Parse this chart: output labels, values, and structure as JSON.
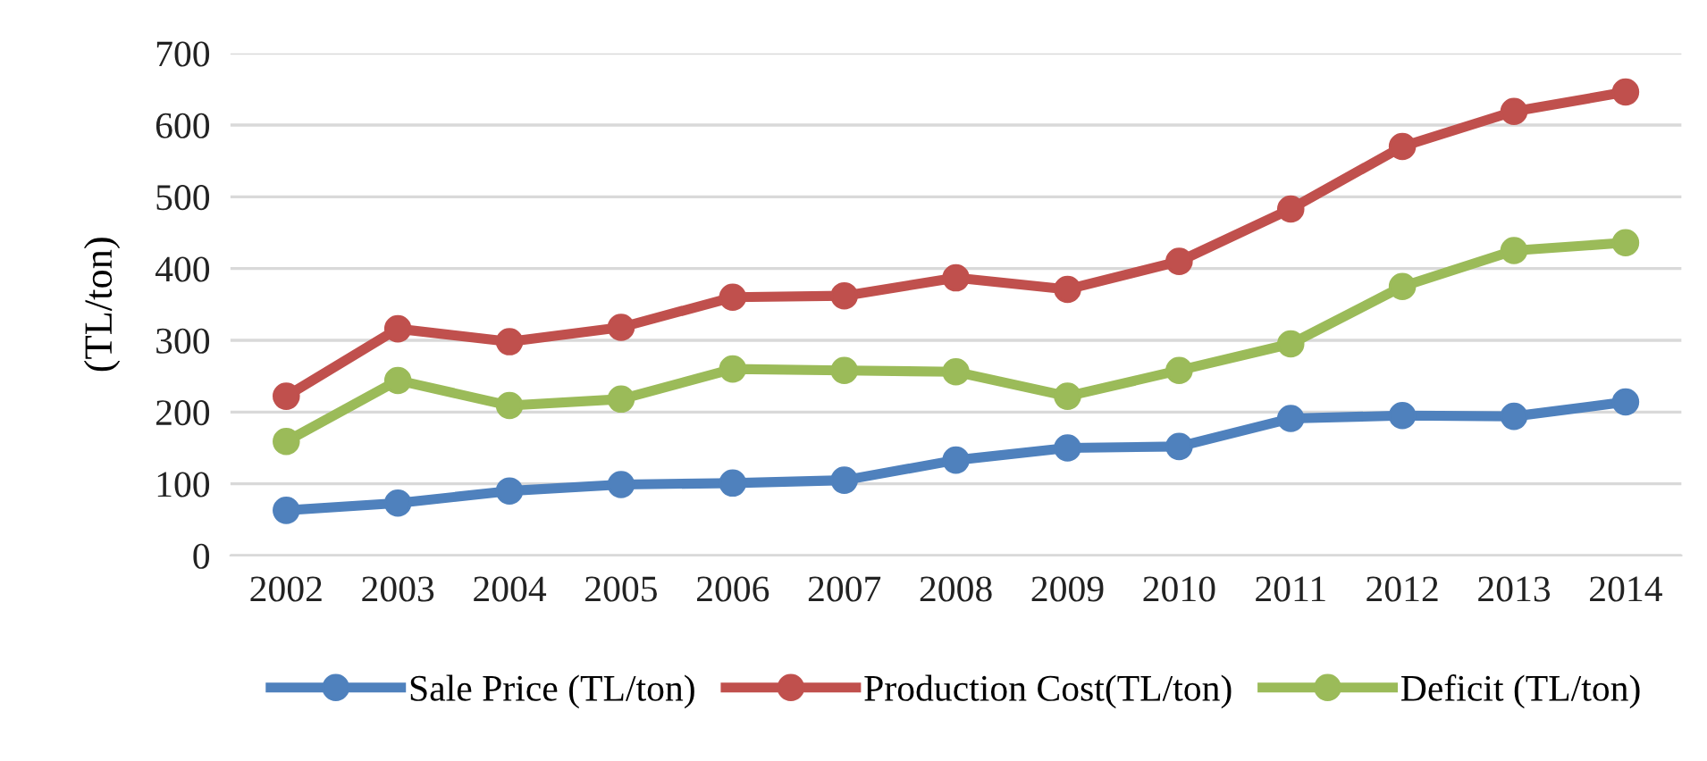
{
  "chart_data": {
    "type": "line",
    "ylabel": "(TL/ton)",
    "categories": [
      "2002",
      "2003",
      "2004",
      "2005",
      "2006",
      "2007",
      "2008",
      "2009",
      "2010",
      "2011",
      "2012",
      "2013",
      "2014"
    ],
    "series": [
      {
        "name": "Sale Price (TL/ton)",
        "color": "#4f81bd",
        "values": [
          63,
          73,
          90,
          99,
          101,
          105,
          133,
          150,
          152,
          191,
          195,
          194,
          214
        ]
      },
      {
        "name": "Production Cost(TL/ton)",
        "color": "#c0504d",
        "values": [
          222,
          316,
          298,
          318,
          360,
          362,
          387,
          371,
          410,
          483,
          570,
          619,
          646
        ]
      },
      {
        "name": "Deficit (TL/ton)",
        "color": "#9bbb59",
        "values": [
          159,
          244,
          209,
          218,
          260,
          258,
          256,
          222,
          258,
          295,
          375,
          425,
          436
        ]
      }
    ],
    "ylim": [
      0,
      700
    ],
    "yticks": [
      0,
      100,
      200,
      300,
      400,
      500,
      600,
      700
    ],
    "grid": "y",
    "legend": "bottom",
    "marker": "circle",
    "line_style": "solid"
  }
}
